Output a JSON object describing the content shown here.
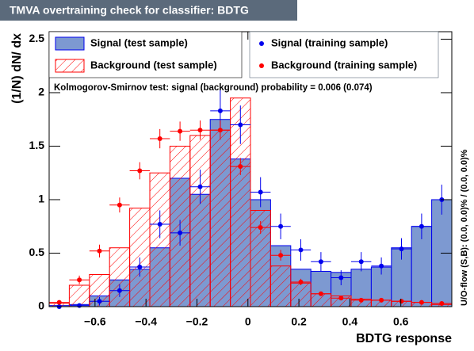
{
  "chart_data": {
    "type": "histogram",
    "title": "TMVA overtraining check for classifier: BDTG",
    "x_label": "BDTG response",
    "y_label": "(1/N) dN/ dx",
    "annotation": "Kolmogorov-Smirnov test: signal (background) probability = 0.006 (0.074)",
    "flow_label": "U/O-flow (S,B): (0.0, 0.0)% / (0.0, 0.0)%",
    "bins": [
      -0.78,
      -0.701,
      -0.622,
      -0.543,
      -0.464,
      -0.385,
      -0.306,
      -0.227,
      -0.148,
      -0.069,
      0.01,
      0.089,
      0.168,
      0.247,
      0.326,
      0.405,
      0.484,
      0.563,
      0.642,
      0.721,
      0.8
    ],
    "xlim": [
      -0.78,
      0.8
    ],
    "ylim": [
      0,
      2.57
    ],
    "xticks": [
      {
        "value": -0.6,
        "label": "−0.6"
      },
      {
        "value": -0.4,
        "label": "−0.4"
      },
      {
        "value": -0.2,
        "label": "−0.2"
      },
      0,
      0.2,
      0.4,
      0.6
    ],
    "yticks": [
      0,
      0.5,
      1,
      1.5,
      2,
      2.5
    ],
    "series": [
      {
        "name": "Signal (test sample)",
        "style": "filled",
        "color": "#7d99d1",
        "edge": "#0000ee",
        "values": [
          0.01,
          0.02,
          0.1,
          0.25,
          0.35,
          0.55,
          1.2,
          1.05,
          1.75,
          1.38,
          1.0,
          0.57,
          0.35,
          0.33,
          0.32,
          0.35,
          0.37,
          0.55,
          0.75,
          1.0
        ]
      },
      {
        "name": "Background (test sample)",
        "style": "hatched",
        "color": "#ff0000",
        "values": [
          0.03,
          0.2,
          0.3,
          0.55,
          0.92,
          1.25,
          1.5,
          1.6,
          1.65,
          1.95,
          0.9,
          0.38,
          0.22,
          0.12,
          0.1,
          0.07,
          0.06,
          0.05,
          0.04,
          0.02
        ]
      },
      {
        "name": "Signal (training sample)",
        "style": "points",
        "color": "#0000ee",
        "values": [
          0.0,
          0.01,
          0.05,
          0.15,
          0.37,
          0.77,
          0.69,
          1.12,
          1.83,
          1.7,
          1.07,
          0.75,
          0.53,
          0.42,
          0.27,
          0.42,
          0.38,
          0.54,
          0.75,
          1.0
        ],
        "errors": [
          0.01,
          0.02,
          0.04,
          0.06,
          0.09,
          0.13,
          0.12,
          0.16,
          0.2,
          0.18,
          0.14,
          0.12,
          0.1,
          0.09,
          0.07,
          0.09,
          0.08,
          0.1,
          0.12,
          0.14
        ]
      },
      {
        "name": "Background (training sample)",
        "style": "points",
        "color": "#ff0000",
        "values": [
          0.04,
          0.25,
          0.52,
          0.95,
          1.27,
          1.57,
          1.64,
          1.65,
          1.65,
          1.31,
          0.74,
          0.48,
          0.23,
          0.12,
          0.08,
          0.06,
          0.06,
          0.05,
          0.04,
          0.03
        ],
        "errors": [
          0.01,
          0.04,
          0.06,
          0.07,
          0.08,
          0.09,
          0.09,
          0.09,
          0.09,
          0.08,
          0.06,
          0.05,
          0.03,
          0.02,
          0.02,
          0.02,
          0.02,
          0.02,
          0.01,
          0.01
        ]
      }
    ]
  }
}
